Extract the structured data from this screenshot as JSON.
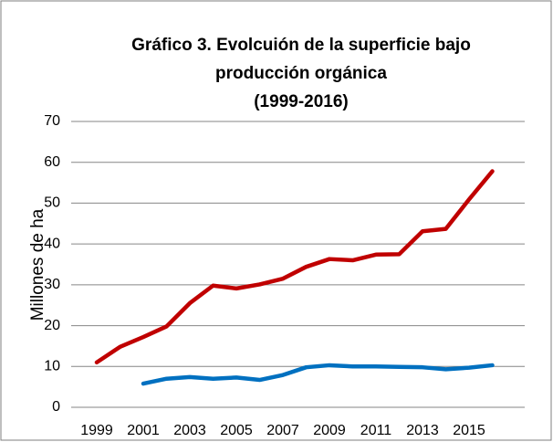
{
  "chart_data": {
    "type": "line",
    "title": [
      "Gráfico 3. Evolcuión de la superficie bajo",
      "producción orgánica",
      "(1999-2016)"
    ],
    "y_label": "Millones de ha",
    "categories": [
      "1999",
      null,
      "2001",
      null,
      "2003",
      null,
      "2005",
      null,
      "2007",
      null,
      "2009",
      null,
      "2011",
      null,
      "2013",
      null,
      "2015",
      null
    ],
    "series": [
      {
        "color": "#c00000",
        "values": [
          11,
          14.8,
          17.2,
          19.8,
          25.5,
          29.8,
          29.1,
          30.1,
          31.5,
          34.4,
          36.3,
          36,
          37.4,
          37.5,
          43.1,
          43.7,
          50.9,
          57.8
        ]
      },
      {
        "color": "#0070c0",
        "values": [
          null,
          null,
          5.8,
          7,
          7.4,
          7,
          7.3,
          6.7,
          7.9,
          9.8,
          10.3,
          10,
          10,
          9.9,
          9.8,
          9.3,
          9.7,
          10.3
        ]
      }
    ],
    "ylim": [
      0,
      70
    ],
    "yticks": [
      0,
      10,
      20,
      30,
      40,
      50,
      60,
      70
    ],
    "grid": true
  }
}
